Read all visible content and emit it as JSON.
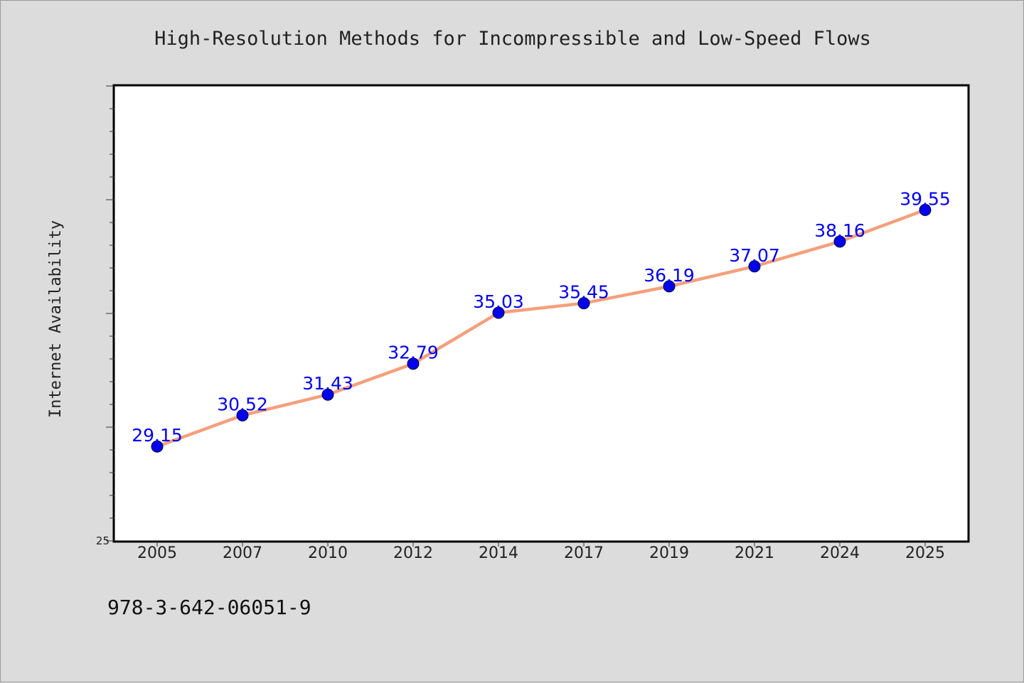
{
  "chart_data": {
    "type": "line",
    "title": "High-Resolution Methods for Incompressible and Low-Speed Flows",
    "ylabel": "Internet Availability",
    "xlabel": "",
    "categories": [
      "2005",
      "2007",
      "2010",
      "2012",
      "2014",
      "2017",
      "2019",
      "2021",
      "2024",
      "2025"
    ],
    "series": [
      {
        "values": [
          29.15,
          30.52,
          31.43,
          32.79,
          35.03,
          35.45,
          36.19,
          37.07,
          38.16,
          39.55
        ],
        "data_labels": [
          "29.15",
          "30.52",
          "31.43",
          "32.79",
          "35.03",
          "35.45",
          "36.19",
          "37.07",
          "38.16",
          "39.55"
        ]
      }
    ],
    "ylim": [
      25,
      45
    ],
    "yticks_labeled": [
      "25"
    ],
    "grid": false,
    "line_color": "#f4a07c",
    "marker_color": "#0000ee",
    "label_color": "#0000ee"
  },
  "footer": {
    "text": "978-3-642-06051-9"
  },
  "colors": {
    "background": "#dcdcdc",
    "plot_background": "#ffffff",
    "frame": "#000000"
  }
}
